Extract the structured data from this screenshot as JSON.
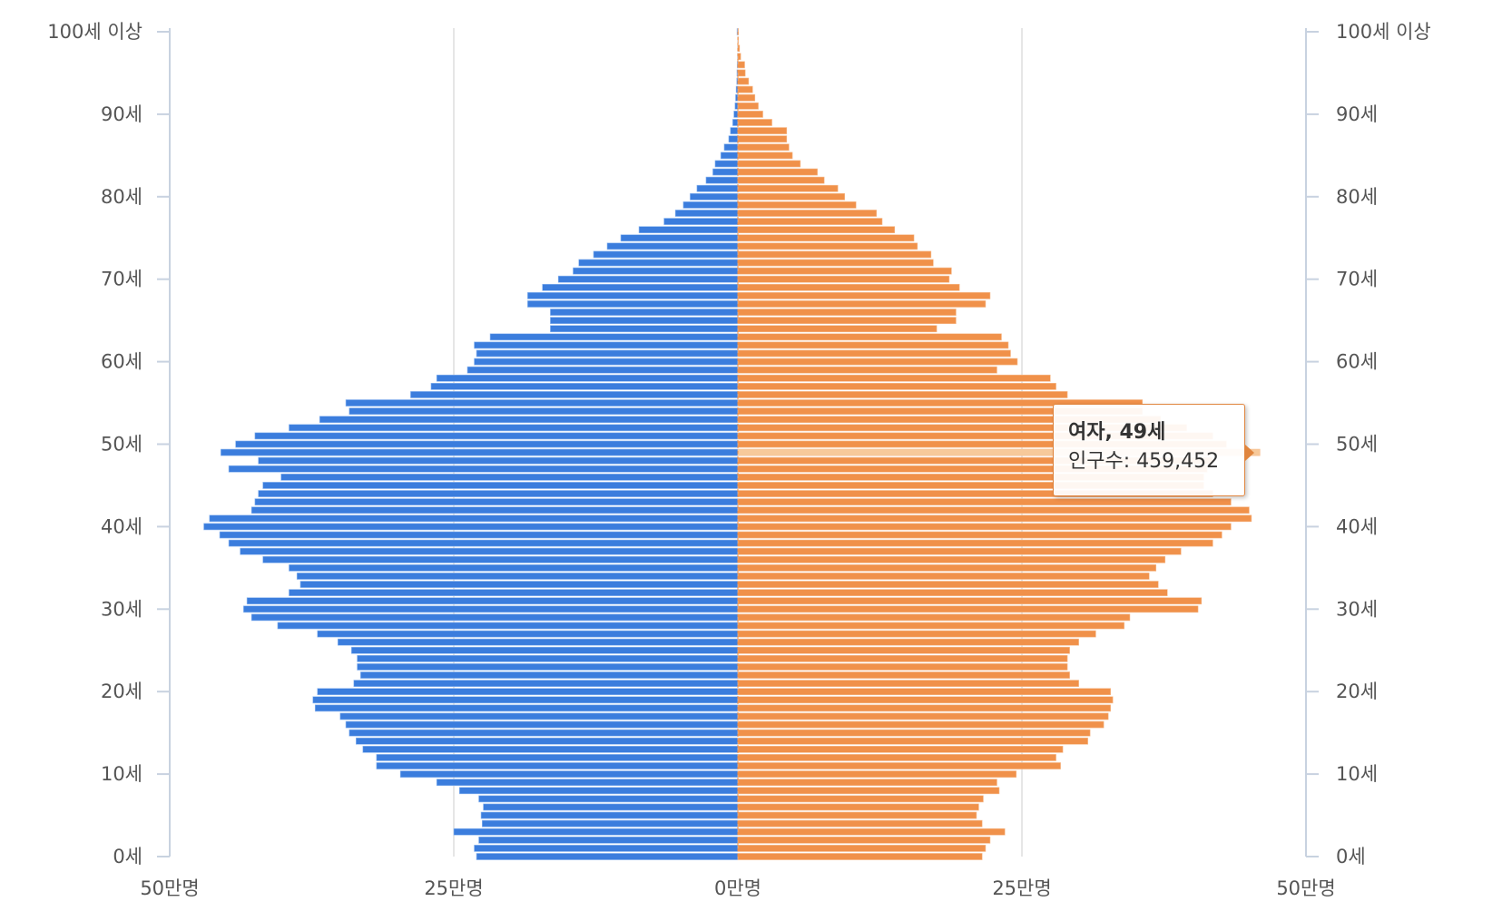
{
  "chart_data": {
    "type": "bar",
    "orientation": "horizontal-population-pyramid",
    "y_categories_note": "age in years 0..100, 100 = 100세 이상",
    "left_axis_ticks": [
      "0세",
      "10세",
      "20세",
      "30세",
      "40세",
      "50세",
      "60세",
      "70세",
      "80세",
      "90세",
      "100세 이상"
    ],
    "right_axis_ticks": [
      "0세",
      "10세",
      "20세",
      "30세",
      "40세",
      "50세",
      "60세",
      "70세",
      "80세",
      "90세",
      "100세 이상"
    ],
    "x_axis_ticks": [
      "50만명",
      "25만명",
      "0만명",
      "25만명",
      "50만명"
    ],
    "xlim": [
      -500000,
      500000
    ],
    "ylim": [
      0,
      100
    ],
    "grid": "vertical lines at 25만명 intervals",
    "series": [
      {
        "color": "#3b7ddd",
        "values": [
          230000,
          232000,
          228000,
          250000,
          225000,
          226000,
          224000,
          228000,
          245000,
          265000,
          297000,
          318000,
          318000,
          330000,
          336000,
          342000,
          345000,
          350000,
          372000,
          374000,
          370000,
          338000,
          332000,
          335000,
          335000,
          340000,
          352000,
          370000,
          405000,
          428000,
          435000,
          432000,
          395000,
          385000,
          388000,
          395000,
          418000,
          438000,
          448000,
          456000,
          470000,
          465000,
          428000,
          425000,
          422000,
          418000,
          402000,
          448000,
          422000,
          455000,
          442000,
          425000,
          395000,
          368000,
          342000,
          345000,
          288000,
          270000,
          265000,
          238000,
          232000,
          230000,
          232000,
          218000,
          165000,
          165000,
          165000,
          185000,
          185000,
          172000,
          158000,
          145000,
          140000,
          127000,
          115000,
          103000,
          87000,
          65000,
          55000,
          48000,
          42000,
          36000,
          28000,
          22000,
          20000,
          15000,
          12000,
          8000,
          6500,
          4500,
          3500,
          2500,
          2000,
          1500,
          1000,
          800,
          600,
          300,
          200,
          150,
          700
        ]
      },
      {
        "color": "#f0914a",
        "values": [
          215000,
          218000,
          222000,
          235000,
          215000,
          210000,
          212000,
          216000,
          230000,
          228000,
          245000,
          284000,
          280000,
          286000,
          308000,
          310000,
          322000,
          326000,
          328000,
          330000,
          328000,
          300000,
          292000,
          290000,
          290000,
          292000,
          300000,
          315000,
          340000,
          345000,
          405000,
          408000,
          378000,
          370000,
          362000,
          368000,
          376000,
          390000,
          418000,
          426000,
          434000,
          452000,
          450000,
          434000,
          418000,
          410000,
          410000,
          413000,
          418000,
          459452,
          430000,
          418000,
          395000,
          372000,
          356000,
          356000,
          290000,
          280000,
          275000,
          228000,
          246000,
          240000,
          238000,
          232000,
          175000,
          192000,
          192000,
          218000,
          222000,
          195000,
          186000,
          188000,
          172000,
          170000,
          158000,
          155000,
          138000,
          127000,
          122000,
          104000,
          94000,
          88000,
          76000,
          70000,
          55000,
          48000,
          45000,
          43000,
          43000,
          30000,
          22000,
          18000,
          15000,
          13000,
          9500,
          6500,
          6000,
          2500,
          1500,
          500,
          500
        ]
      }
    ],
    "highlight_index": 49,
    "tooltip": {
      "title": "여자, 49세",
      "label": "인구수:",
      "value": "459,452"
    }
  }
}
